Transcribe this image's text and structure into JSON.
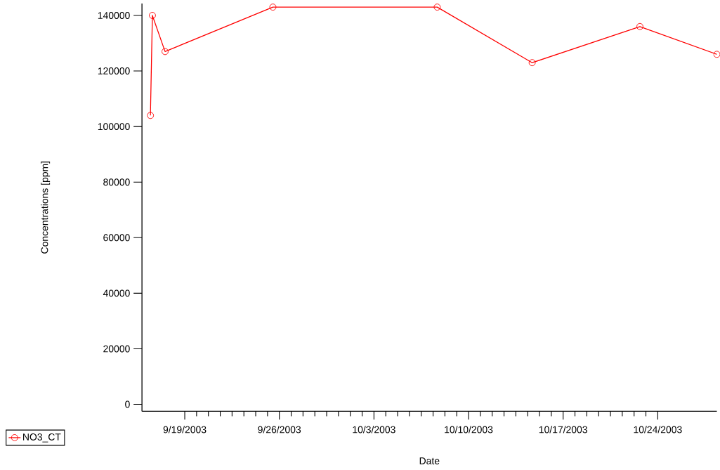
{
  "chart_data": {
    "type": "line",
    "xlabel": "Date",
    "ylabel": "Concentrations [ppm]",
    "x": [
      "2003-09-16T11:00",
      "2003-09-16T14:30",
      "2003-09-17T13:00",
      "2003-09-25T12:30",
      "2003-10-07T16:20",
      "2003-10-14T17:00",
      "2003-10-22T16:20",
      "2003-10-28T09:00"
    ],
    "series": [
      {
        "name": "NO3_CT",
        "color": "#ff0000",
        "values": [
          104000,
          140000,
          127000,
          143000,
          143000,
          123000,
          136000,
          126000
        ]
      }
    ],
    "xlim": [
      "2003-09-15T20:00",
      "2003-10-28T09:00"
    ],
    "xticks": [
      {
        "value": "2003-09-19",
        "label": "9/19/2003"
      },
      {
        "value": "2003-09-26",
        "label": "9/26/2003"
      },
      {
        "value": "2003-10-03",
        "label": "10/3/2003"
      },
      {
        "value": "2003-10-10",
        "label": "10/10/2003"
      },
      {
        "value": "2003-10-17",
        "label": "10/17/2003"
      },
      {
        "value": "2003-10-24",
        "label": "10/24/2003"
      }
    ],
    "ylim": [
      -2500,
      144300
    ],
    "yticks": [
      0,
      20000,
      40000,
      60000,
      80000,
      100000,
      120000,
      140000
    ],
    "grid": false,
    "legend": "bottom left",
    "marker": "circle",
    "line_style": "solid"
  }
}
